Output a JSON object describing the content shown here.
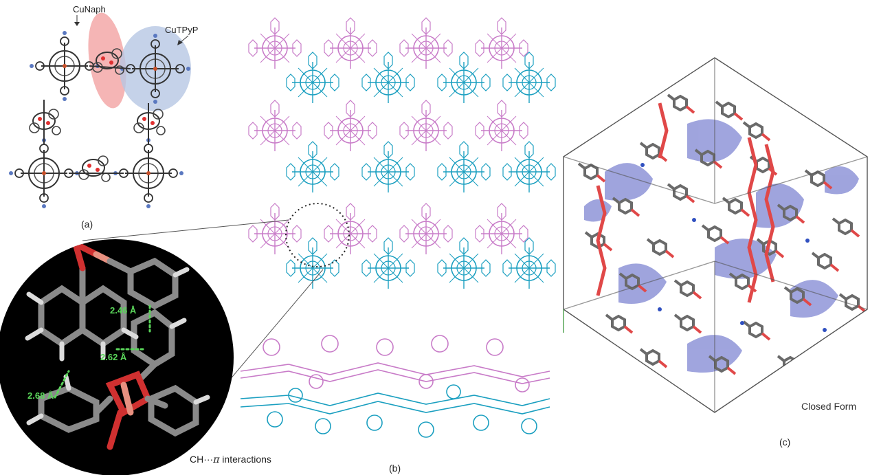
{
  "panel_a": {
    "label": "(a)",
    "cunaph_label": "CuNaph",
    "cutpyp_label": "CuTPyP"
  },
  "panel_b": {
    "label": "(b)"
  },
  "inset": {
    "distances": [
      "2.46 Å",
      "2.62 Å",
      "2.68 Å"
    ],
    "caption_prefix": "CH···",
    "caption_pi": "π",
    "caption_suffix": " interactions"
  },
  "panel_c": {
    "label": "(c)",
    "form_label": "Closed Form"
  },
  "colors": {
    "magenta_lattice": "#c87bc8",
    "cyan_lattice": "#1a9fc0",
    "oxygen": "#e03030",
    "copper": "#e89080",
    "nitrogen": "#3050c0",
    "carbon": "#707070",
    "void_surface": "#8f95d8",
    "highlight_pink": "#f2a3a3",
    "highlight_blue": "#b7c7e4",
    "contact_green": "#5ad65a"
  }
}
